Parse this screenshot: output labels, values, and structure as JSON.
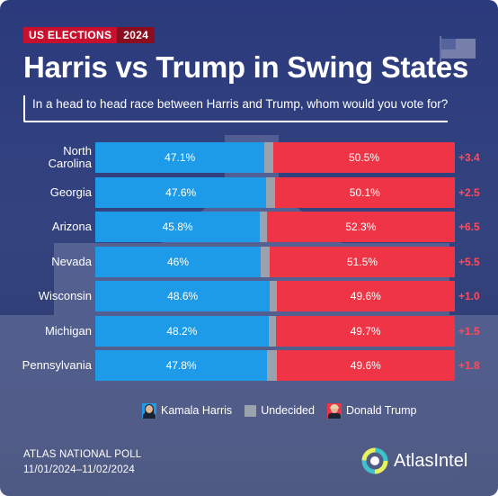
{
  "header": {
    "tag_left": "US ELECTIONS",
    "tag_right": "2024",
    "title": "Harris vs Trump in Swing States",
    "question": "In a head to head race between Harris and Trump, whom would you vote for?"
  },
  "colors": {
    "harris": "#1e9be8",
    "undecided": "#9aa3ad",
    "trump": "#ef3545",
    "background": "#2b3a7c",
    "lead": "#ff4b5c"
  },
  "chart_data": {
    "type": "bar",
    "orientation": "horizontal-stacked",
    "categories": [
      "North Carolina",
      "Georgia",
      "Arizona",
      "Nevada",
      "Wisconsin",
      "Michigan",
      "Pennsylvania"
    ],
    "category_lines": [
      [
        "North",
        "Carolina"
      ],
      [
        "Georgia"
      ],
      [
        "Arizona"
      ],
      [
        "Nevada"
      ],
      [
        "Wisconsin"
      ],
      [
        "Michigan"
      ],
      [
        "Pennsylvania"
      ]
    ],
    "series": [
      {
        "name": "Kamala Harris",
        "values": [
          47.1,
          47.6,
          45.8,
          46,
          48.6,
          48.2,
          47.8
        ],
        "labels": [
          "47.1%",
          "47.6%",
          "45.8%",
          "46%",
          "48.6%",
          "48.2%",
          "47.8%"
        ]
      },
      {
        "name": "Undecided",
        "values": [
          2.4,
          2.3,
          1.9,
          2.5,
          1.8,
          2.1,
          2.6
        ]
      },
      {
        "name": "Donald Trump",
        "values": [
          50.5,
          50.1,
          52.3,
          51.5,
          49.6,
          49.7,
          49.6
        ],
        "labels": [
          "50.5%",
          "50.1%",
          "52.3%",
          "51.5%",
          "49.6%",
          "49.7%",
          "49.6%"
        ]
      }
    ],
    "trump_lead": [
      "+3.4",
      "+2.5",
      "+6.5",
      "+5.5",
      "+1.0",
      "+1.5",
      "+1.8"
    ],
    "xlim": [
      0,
      100
    ],
    "legend": [
      "Kamala Harris",
      "Undecided",
      "Donald Trump"
    ],
    "legend_position": "bottom"
  },
  "legend": {
    "harris": "Kamala Harris",
    "undecided": "Undecided",
    "trump": "Donald Trump"
  },
  "footer": {
    "line1": "ATLAS NATIONAL POLL",
    "line2": "11/01/2024–11/02/2024",
    "brand": "AtlasIntel"
  },
  "icons": [
    "flag-icon",
    "harris-portrait-icon",
    "trump-portrait-icon",
    "atlasintel-logo-icon"
  ]
}
